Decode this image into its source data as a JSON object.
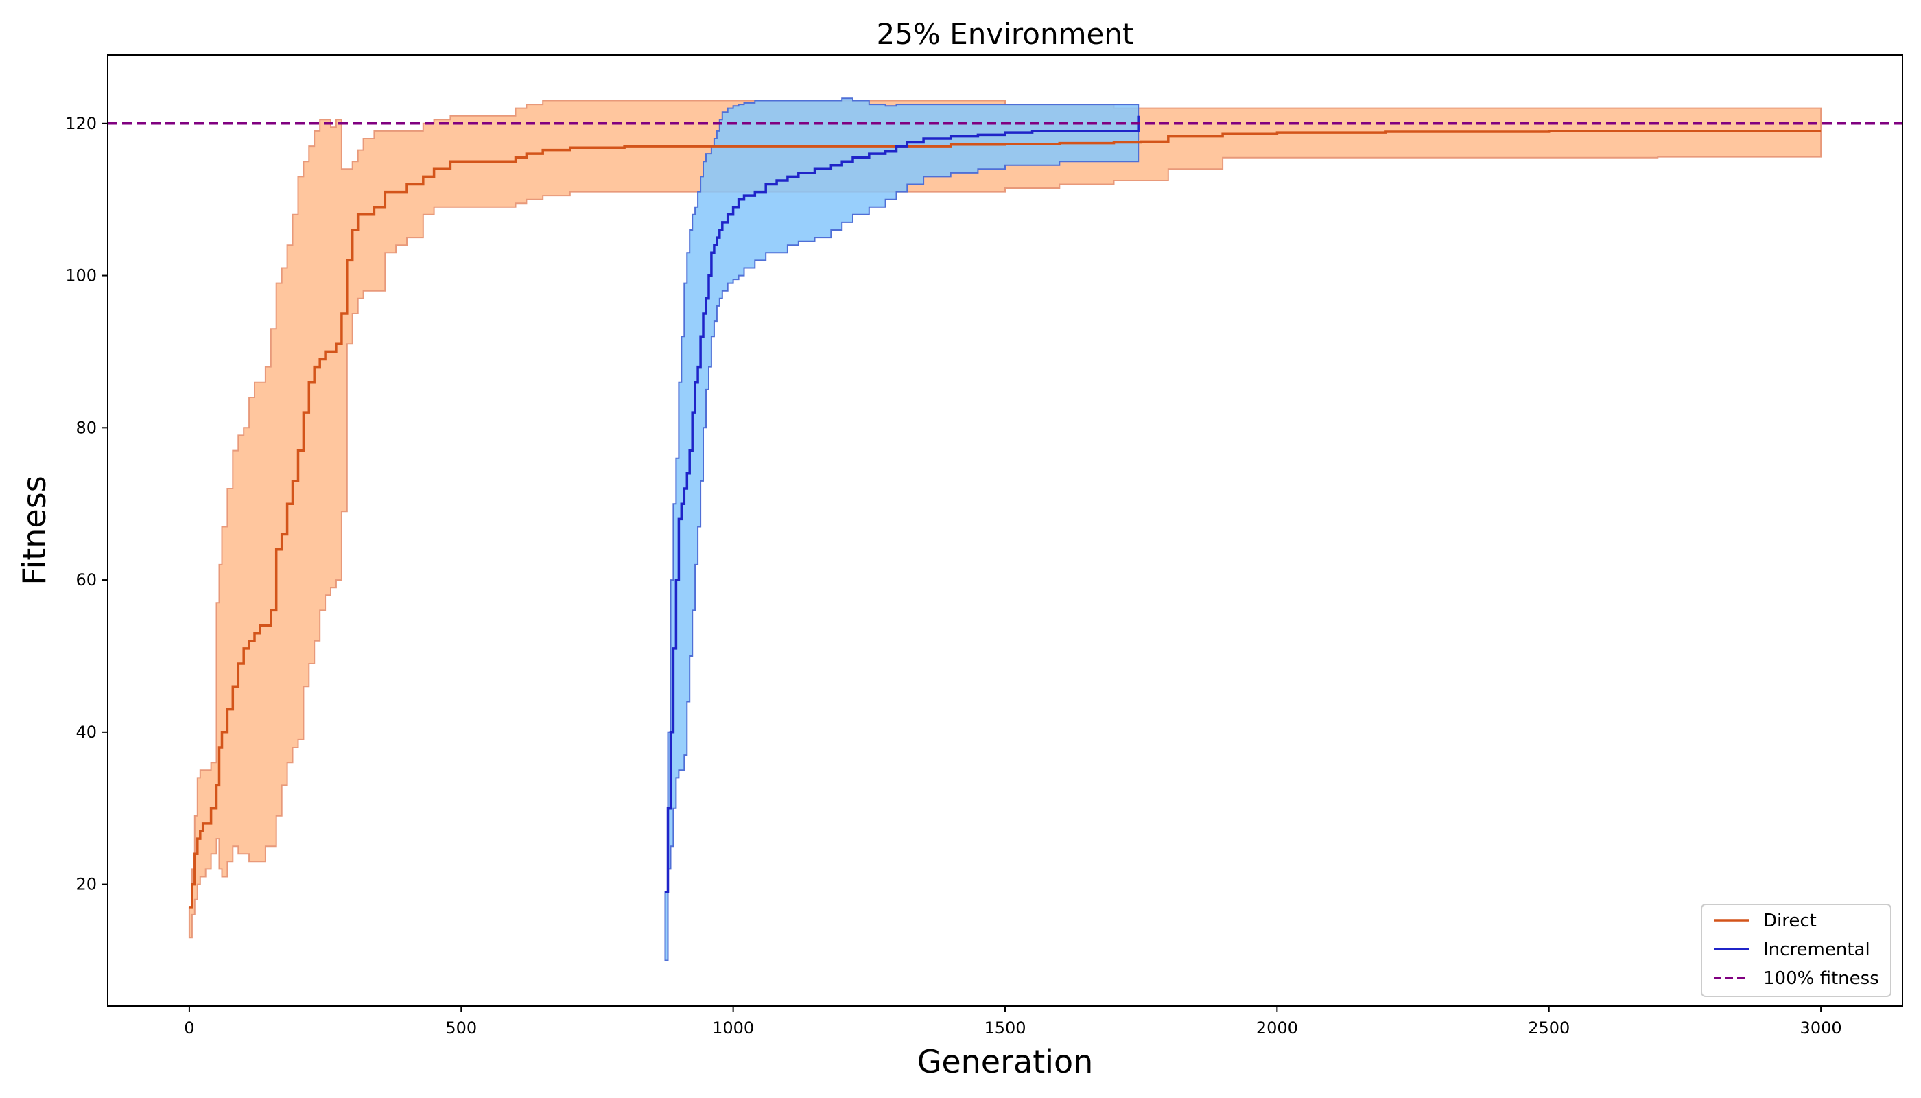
{
  "chart_data": {
    "type": "line",
    "title": "25% Environment",
    "xlabel": "Generation",
    "ylabel": "Fitness",
    "xlim": [
      -150,
      3150
    ],
    "ylim": [
      4,
      129
    ],
    "xticks": [
      0,
      500,
      1000,
      1500,
      2000,
      2500,
      3000
    ],
    "yticks": [
      20,
      40,
      60,
      80,
      100,
      120
    ],
    "legend_position": "lower-right",
    "grid": false,
    "reference_line": {
      "name": "100% fitness",
      "y": 120,
      "color": "#800080",
      "style": "dashed"
    },
    "series": [
      {
        "name": "Direct",
        "color": "#d3541a",
        "band_color": "#ffc69e",
        "band_edge_color": "#e8997a",
        "x": [
          0,
          5,
          10,
          15,
          20,
          25,
          30,
          40,
          50,
          55,
          60,
          70,
          80,
          90,
          100,
          110,
          120,
          130,
          140,
          150,
          160,
          170,
          180,
          190,
          200,
          210,
          220,
          230,
          240,
          250,
          260,
          270,
          280,
          290,
          300,
          310,
          320,
          340,
          360,
          380,
          400,
          430,
          450,
          480,
          520,
          560,
          600,
          620,
          650,
          700,
          800,
          900,
          1000,
          1100,
          1200,
          1300,
          1400,
          1500,
          1600,
          1700,
          1750,
          1800,
          1900,
          2000,
          2200,
          2400,
          2500,
          2700,
          3000
        ],
        "mean": [
          17,
          20,
          24,
          26,
          27,
          28,
          28,
          30,
          33,
          38,
          40,
          43,
          46,
          49,
          51,
          52,
          53,
          54,
          54,
          56,
          64,
          66,
          70,
          73,
          77,
          82,
          86,
          88,
          89,
          90,
          90,
          91,
          95,
          102,
          106,
          108,
          108,
          109,
          111,
          111,
          112,
          113,
          114,
          115,
          115,
          115,
          115.5,
          116,
          116.5,
          116.8,
          117,
          117,
          117,
          117,
          117,
          117,
          117.2,
          117.3,
          117.4,
          117.5,
          117.6,
          118.3,
          118.6,
          118.8,
          118.9,
          118.9,
          119,
          119,
          119
        ],
        "upper": [
          17,
          22,
          29,
          34,
          35,
          35,
          35,
          36,
          57,
          62,
          67,
          72,
          77,
          79,
          80,
          84,
          86,
          86,
          88,
          93,
          99,
          101,
          104,
          108,
          113,
          115,
          117,
          119,
          120.5,
          120.5,
          119.5,
          120.5,
          114,
          114,
          115,
          116.5,
          118,
          119,
          119,
          119,
          119,
          120,
          120.5,
          121,
          121,
          121,
          122,
          122.5,
          123,
          123,
          123,
          123,
          123,
          123,
          123,
          123,
          123,
          122.5,
          122.5,
          122,
          122,
          122,
          122,
          122,
          122,
          122,
          122,
          122,
          122
        ],
        "lower": [
          13,
          16,
          18,
          20,
          21,
          21,
          22,
          24,
          26,
          22,
          21,
          23,
          25,
          24,
          24,
          23,
          23,
          23,
          25,
          25,
          29,
          33,
          36,
          38,
          39,
          46,
          49,
          52,
          56,
          58,
          59,
          60,
          69,
          91,
          95,
          97,
          98,
          98,
          103,
          104,
          105,
          108,
          109,
          109,
          109,
          109,
          109.5,
          110,
          110.5,
          111,
          111,
          111,
          111,
          111,
          111,
          111,
          111,
          111.5,
          112,
          112.5,
          112.5,
          114,
          115.5,
          115.5,
          115.5,
          115.5,
          115.5,
          115.6,
          115.6
        ]
      },
      {
        "name": "Incremental",
        "color": "#1f24c8",
        "band_color": "#86c7fb",
        "band_edge_color": "#4f6fd6",
        "x": [
          875,
          880,
          885,
          890,
          895,
          900,
          905,
          910,
          915,
          920,
          925,
          930,
          935,
          940,
          945,
          950,
          955,
          960,
          965,
          970,
          975,
          980,
          990,
          1000,
          1010,
          1020,
          1040,
          1060,
          1080,
          1100,
          1120,
          1150,
          1180,
          1200,
          1220,
          1250,
          1280,
          1300,
          1320,
          1350,
          1400,
          1450,
          1500,
          1550,
          1600,
          1650,
          1700,
          1745
        ],
        "mean": [
          19,
          30,
          40,
          51,
          60,
          68,
          70,
          72,
          74,
          77,
          82,
          86,
          88,
          92,
          95,
          97,
          100,
          103,
          104,
          105,
          106,
          107,
          108,
          109,
          110,
          110.5,
          111,
          112,
          112.5,
          113,
          113.5,
          114,
          114.5,
          115,
          115.5,
          116,
          116.3,
          117,
          117.5,
          118,
          118.3,
          118.5,
          118.8,
          119,
          119,
          119,
          119,
          121
        ],
        "upper": [
          19,
          40,
          60,
          70,
          76,
          86,
          92,
          99,
          103,
          106,
          108,
          109,
          111,
          113,
          115,
          116,
          116,
          117,
          118,
          119,
          120.5,
          121.5,
          122,
          122.3,
          122.5,
          122.7,
          123,
          123,
          123,
          123,
          123,
          123,
          123,
          123.3,
          123,
          122.5,
          122.3,
          122.5,
          122.5,
          122.5,
          122.5,
          122.5,
          122.5,
          122.5,
          122.5,
          122.5,
          122.5,
          122.5
        ],
        "lower": [
          10,
          22,
          25,
          30,
          34,
          35,
          35,
          37,
          44,
          50,
          56,
          62,
          67,
          73,
          80,
          85,
          88,
          92,
          94,
          96,
          97,
          98,
          99,
          99.5,
          100,
          101,
          102,
          103,
          103,
          104,
          104.5,
          105,
          106,
          107,
          108,
          109,
          110,
          111,
          112,
          113,
          113.5,
          114,
          114.5,
          114.5,
          115,
          115,
          115,
          115
        ]
      }
    ]
  }
}
